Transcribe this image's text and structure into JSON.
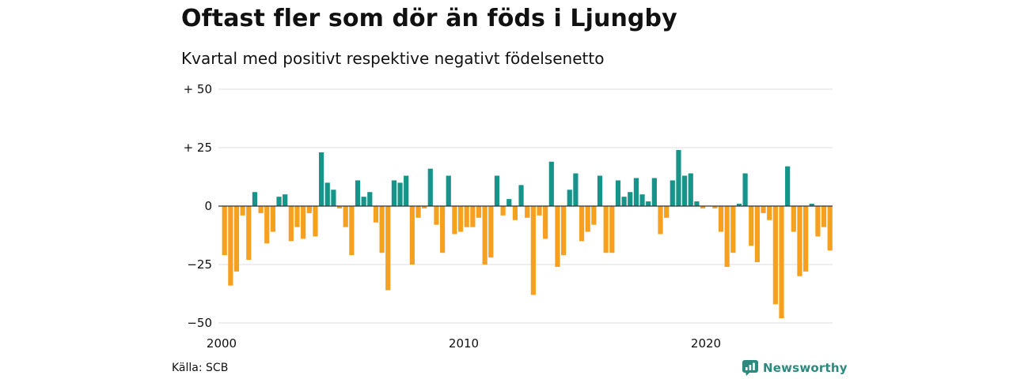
{
  "title": "Oftast fler som dör än föds i Ljungby",
  "subtitle": "Kvartal med positivt respektive negativt födelsenetto",
  "source": "Källa: SCB",
  "brand": {
    "name": "Newsworthy",
    "icon": "newsworthy-logo-icon"
  },
  "colors": {
    "positive": "#17948a",
    "negative": "#f5a01f",
    "grid": "#dddddd",
    "zero": "#333333"
  },
  "chart_data": {
    "type": "bar",
    "title": "Oftast fler som dör än föds i Ljungby",
    "subtitle": "Kvartal med positivt respektive negativt födelsenetto",
    "xlabel": "",
    "ylabel": "",
    "ylim": [
      -50,
      50
    ],
    "yticks": [
      50,
      25,
      0,
      -25,
      -50
    ],
    "ytick_labels": [
      "+ 50",
      "+ 25",
      "0",
      "−25",
      "−50"
    ],
    "xticks": [
      "2000",
      "2010",
      "2020"
    ],
    "first_period": "2000K1",
    "grid": true,
    "values": [
      -21,
      -34,
      -28,
      -4,
      -23,
      6,
      -3,
      -16,
      -11,
      4,
      5,
      -15,
      -9,
      -14,
      -3,
      -13,
      23,
      10,
      7,
      -1,
      -9,
      -21,
      11,
      4,
      6,
      -7,
      -20,
      -36,
      11,
      10,
      13,
      -25,
      -5,
      -1,
      16,
      -8,
      -20,
      13,
      -12,
      -11,
      -9,
      -9,
      -5,
      -25,
      -22,
      13,
      -4,
      3,
      -6,
      9,
      -5,
      -38,
      -4,
      -14,
      19,
      -26,
      -21,
      7,
      14,
      -15,
      -11,
      -8,
      13,
      -20,
      -20,
      11,
      4,
      6,
      12,
      5,
      2,
      12,
      -12,
      -5,
      11,
      24,
      13,
      14,
      2,
      -1,
      0,
      -1,
      -11,
      -26,
      -20,
      1,
      14,
      -17,
      -24,
      -3,
      -6,
      -42,
      -48,
      17,
      -11,
      -30,
      -28,
      1,
      -13,
      -9,
      -19
    ]
  }
}
